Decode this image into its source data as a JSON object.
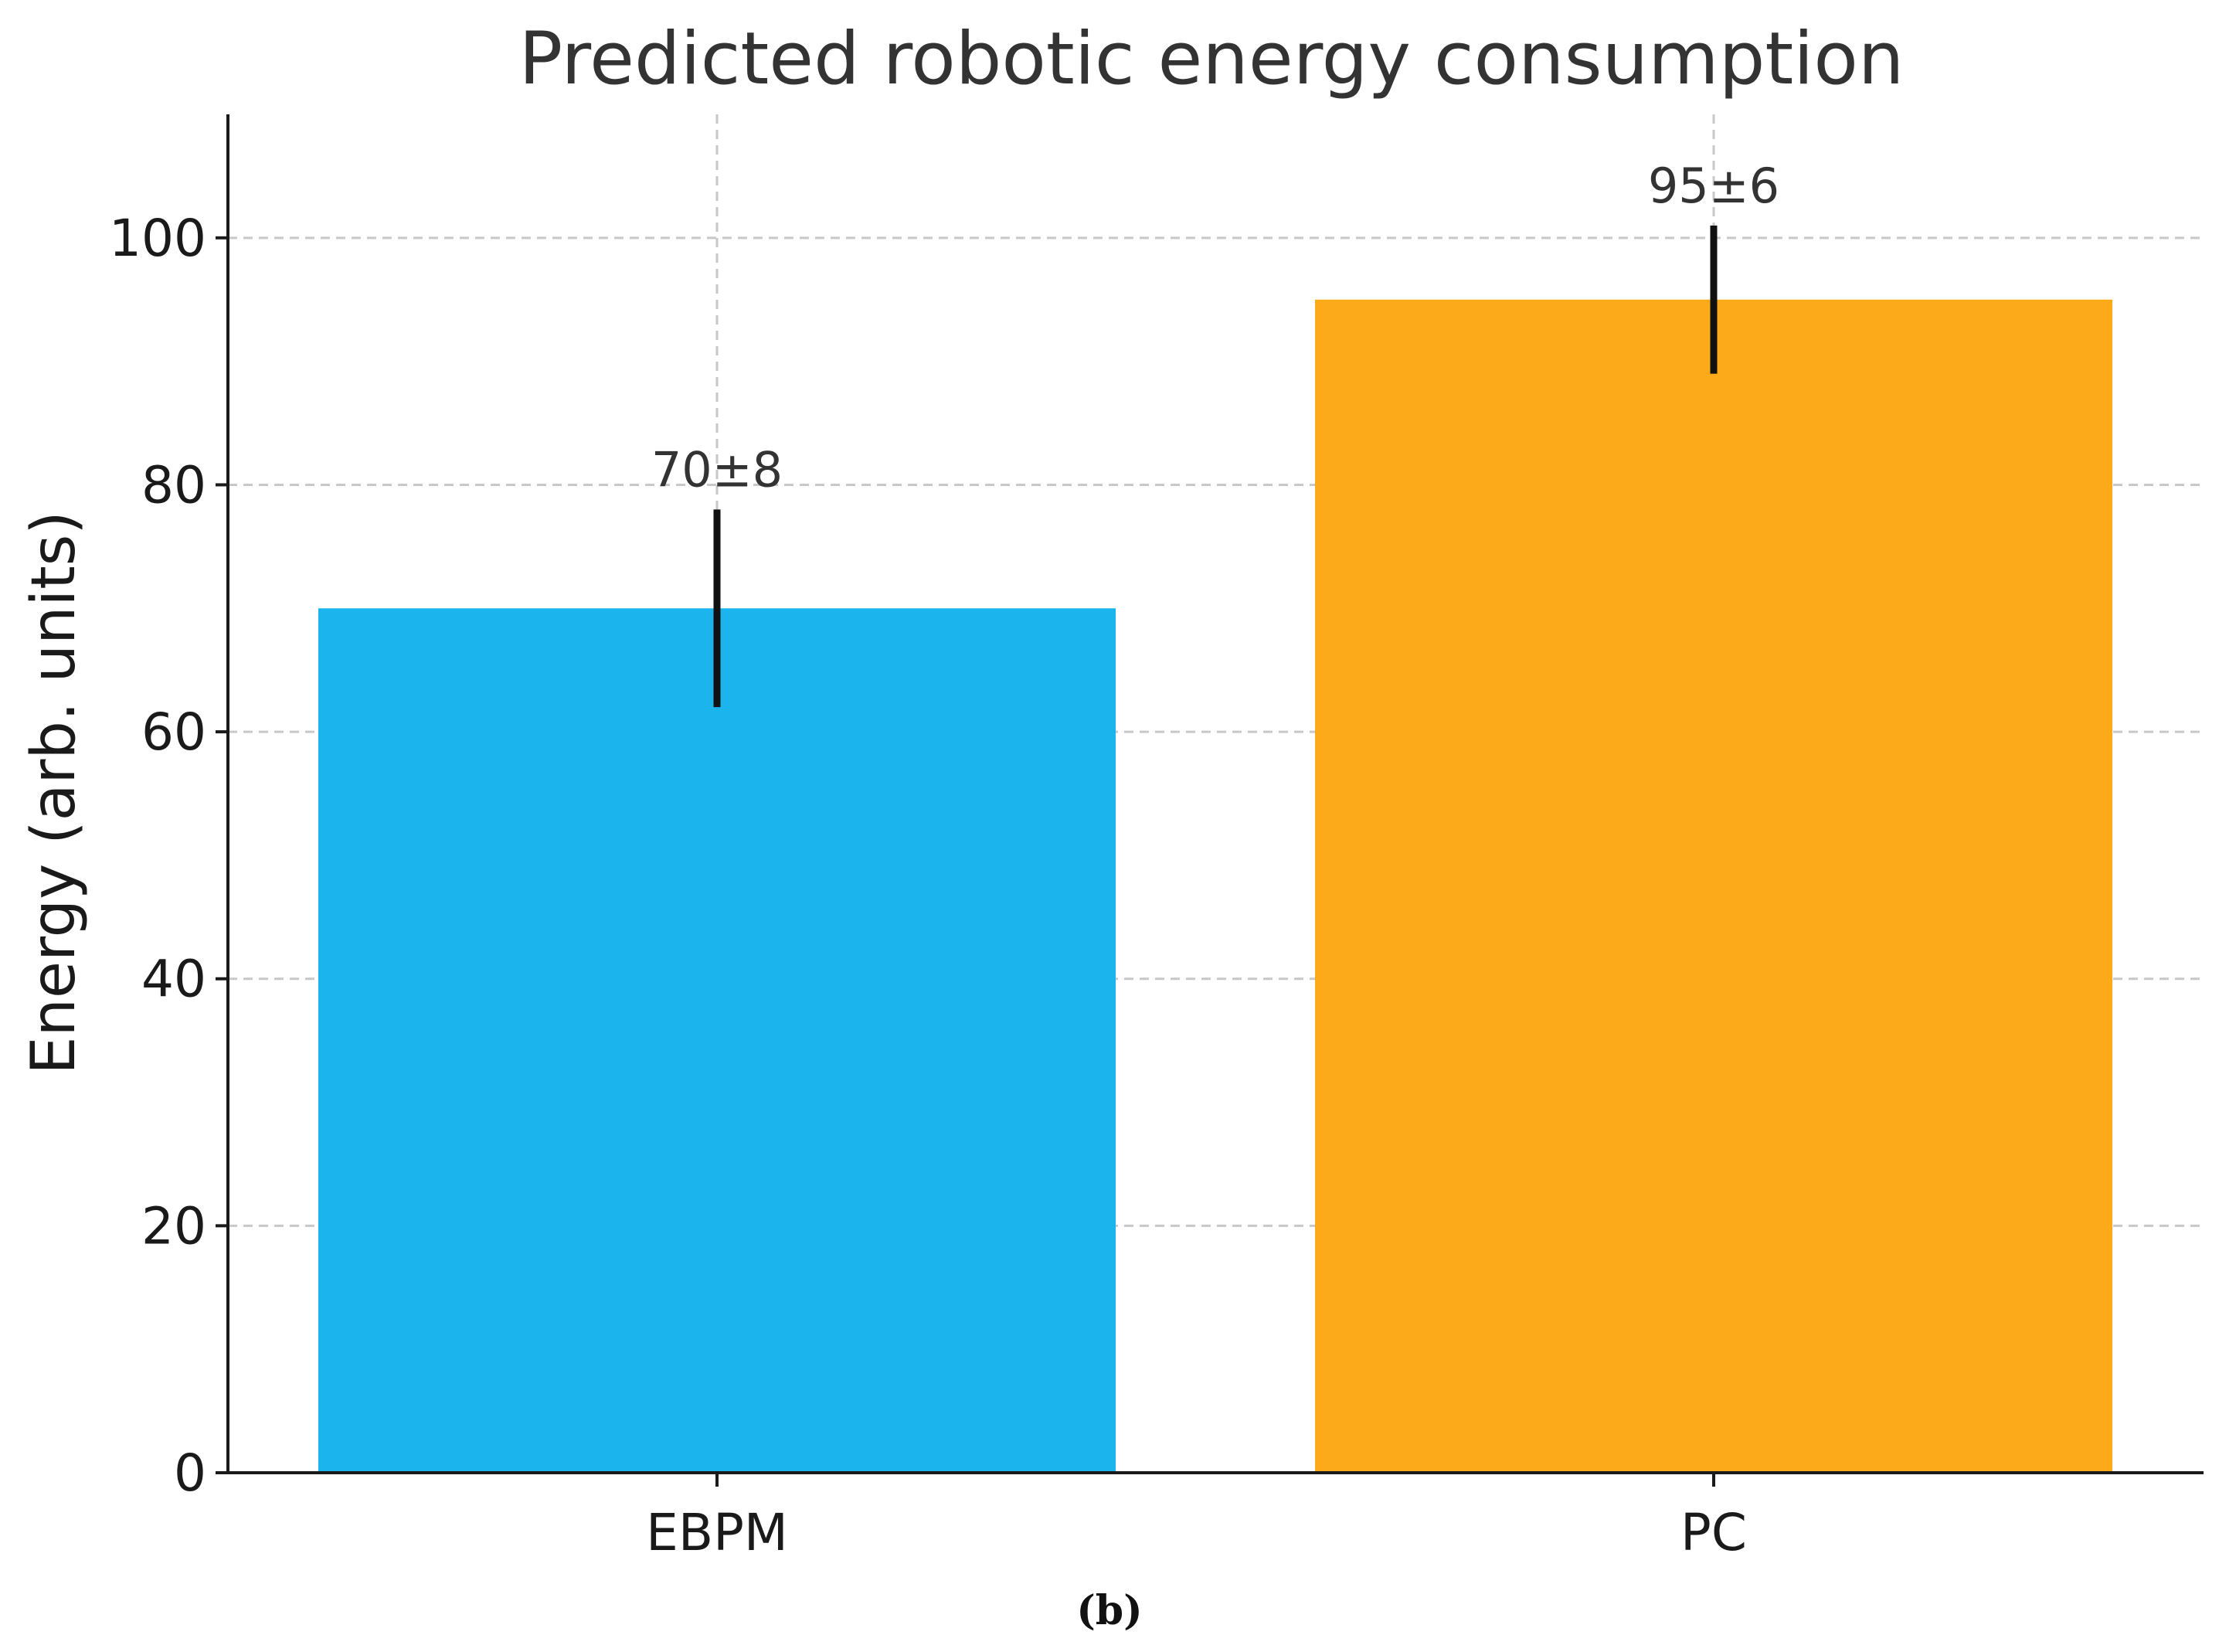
{
  "chart_data": {
    "type": "bar",
    "title": "Predicted robotic energy consumption",
    "xlabel": "",
    "ylabel": "Energy (arb. units)",
    "categories": [
      "EBPM",
      "PC"
    ],
    "values": [
      70,
      95
    ],
    "errors": [
      8,
      6
    ],
    "data_labels": [
      "70±8",
      "95±6"
    ],
    "colors": [
      "#1cb4ed",
      "#fcaa1a"
    ],
    "ylim": [
      0,
      110
    ],
    "yticks": [
      0,
      20,
      40,
      60,
      80,
      100
    ],
    "grid": true,
    "grid_style": "dashed",
    "legend": "none"
  },
  "caption": "(b)"
}
